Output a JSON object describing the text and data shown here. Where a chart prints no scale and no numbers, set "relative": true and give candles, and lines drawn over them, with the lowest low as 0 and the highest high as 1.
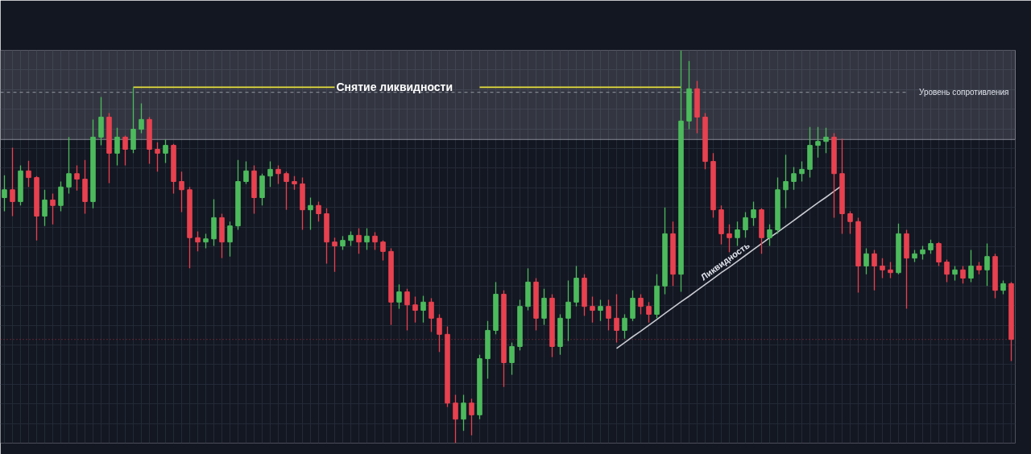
{
  "chart_data": {
    "type": "candlestick",
    "relative": true,
    "tick_labels": false,
    "grid": true,
    "categories": [
      null,
      null,
      null,
      null,
      null,
      null,
      null,
      null,
      null,
      null,
      null,
      null,
      null,
      null,
      null,
      null,
      null,
      null,
      null,
      null,
      null,
      null,
      null,
      null,
      null,
      null,
      null,
      null,
      null,
      null,
      null,
      null,
      null,
      null,
      null,
      null,
      null,
      null,
      null,
      null,
      null,
      null,
      null,
      null,
      null,
      null,
      null,
      null,
      null,
      null,
      null,
      null,
      null,
      null,
      null,
      null,
      null,
      null,
      null,
      null,
      null,
      null,
      null,
      null,
      null,
      null,
      null,
      null,
      null,
      null,
      null,
      null,
      null,
      null,
      null,
      null,
      null,
      null,
      null,
      null,
      null,
      null,
      null,
      null,
      null,
      null,
      null,
      null,
      null,
      null,
      null,
      null,
      null,
      null,
      null,
      null,
      null,
      null,
      null,
      null,
      null,
      null,
      null,
      null,
      null,
      null,
      null,
      null,
      null,
      null,
      null,
      null,
      null,
      null,
      null,
      null,
      null,
      null,
      null,
      null,
      null,
      null,
      null,
      null,
      null,
      null
    ],
    "ohlc": [
      [
        0.625,
        0.682,
        0.59,
        0.645
      ],
      [
        0.645,
        0.752,
        0.578,
        0.615
      ],
      [
        0.615,
        0.707,
        0.605,
        0.693
      ],
      [
        0.693,
        0.719,
        0.652,
        0.676
      ],
      [
        0.676,
        0.68,
        0.516,
        0.578
      ],
      [
        0.578,
        0.645,
        0.553,
        0.619
      ],
      [
        0.619,
        0.635,
        0.557,
        0.605
      ],
      [
        0.605,
        0.666,
        0.59,
        0.652
      ],
      [
        0.652,
        0.779,
        0.635,
        0.686
      ],
      [
        0.686,
        0.707,
        0.643,
        0.672
      ],
      [
        0.672,
        0.721,
        0.584,
        0.615
      ],
      [
        0.615,
        0.824,
        0.598,
        0.779
      ],
      [
        0.779,
        0.881,
        0.758,
        0.83
      ],
      [
        0.83,
        0.84,
        0.662,
        0.738
      ],
      [
        0.738,
        0.803,
        0.707,
        0.779
      ],
      [
        0.779,
        0.783,
        0.707,
        0.748
      ],
      [
        0.748,
        0.906,
        0.738,
        0.799
      ],
      [
        0.799,
        0.865,
        0.789,
        0.824
      ],
      [
        0.824,
        0.83,
        0.711,
        0.748
      ],
      [
        0.748,
        0.766,
        0.691,
        0.738
      ],
      [
        0.738,
        0.773,
        0.713,
        0.758
      ],
      [
        0.758,
        0.762,
        0.635,
        0.666
      ],
      [
        0.666,
        0.691,
        0.588,
        0.645
      ],
      [
        0.645,
        0.652,
        0.445,
        0.523
      ],
      [
        0.523,
        0.539,
        0.488,
        0.512
      ],
      [
        0.512,
        0.533,
        0.496,
        0.52
      ],
      [
        0.52,
        0.621,
        0.502,
        0.574
      ],
      [
        0.574,
        0.584,
        0.471,
        0.512
      ],
      [
        0.512,
        0.564,
        0.475,
        0.553
      ],
      [
        0.553,
        0.721,
        0.543,
        0.666
      ],
      [
        0.666,
        0.717,
        0.66,
        0.693
      ],
      [
        0.693,
        0.707,
        0.584,
        0.625
      ],
      [
        0.625,
        0.686,
        0.605,
        0.68
      ],
      [
        0.68,
        0.717,
        0.652,
        0.697
      ],
      [
        0.697,
        0.707,
        0.66,
        0.686
      ],
      [
        0.686,
        0.691,
        0.594,
        0.666
      ],
      [
        0.666,
        0.68,
        0.645,
        0.66
      ],
      [
        0.66,
        0.676,
        0.543,
        0.594
      ],
      [
        0.594,
        0.625,
        0.543,
        0.605
      ],
      [
        0.605,
        0.615,
        0.564,
        0.584
      ],
      [
        0.584,
        0.598,
        0.457,
        0.512
      ],
      [
        0.512,
        0.523,
        0.436,
        0.502
      ],
      [
        0.502,
        0.527,
        0.492,
        0.516
      ],
      [
        0.516,
        0.539,
        0.502,
        0.529
      ],
      [
        0.529,
        0.547,
        0.482,
        0.512
      ],
      [
        0.512,
        0.547,
        0.492,
        0.527
      ],
      [
        0.527,
        0.537,
        0.492,
        0.512
      ],
      [
        0.512,
        0.516,
        0.465,
        0.488
      ],
      [
        0.488,
        0.496,
        0.301,
        0.359
      ],
      [
        0.359,
        0.404,
        0.342,
        0.385
      ],
      [
        0.385,
        0.393,
        0.287,
        0.352
      ],
      [
        0.352,
        0.373,
        0.307,
        0.338
      ],
      [
        0.338,
        0.375,
        0.307,
        0.359
      ],
      [
        0.359,
        0.369,
        0.283,
        0.318
      ],
      [
        0.318,
        0.328,
        0.232,
        0.277
      ],
      [
        0.277,
        0.297,
        0.092,
        0.102
      ],
      [
        0.102,
        0.123,
        0,
        0.061
      ],
      [
        0.061,
        0.123,
        0.031,
        0.102
      ],
      [
        0.102,
        0.113,
        0.02,
        0.072
      ],
      [
        0.072,
        0.225,
        0.061,
        0.215
      ],
      [
        0.215,
        0.311,
        0.164,
        0.287
      ],
      [
        0.287,
        0.41,
        0.277,
        0.379
      ],
      [
        0.379,
        0.389,
        0.143,
        0.205
      ],
      [
        0.205,
        0.256,
        0.174,
        0.246
      ],
      [
        0.246,
        0.365,
        0.236,
        0.348
      ],
      [
        0.348,
        0.445,
        0.338,
        0.41
      ],
      [
        0.41,
        0.42,
        0.287,
        0.318
      ],
      [
        0.318,
        0.393,
        0.301,
        0.369
      ],
      [
        0.369,
        0.379,
        0.219,
        0.246
      ],
      [
        0.246,
        0.328,
        0.225,
        0.318
      ],
      [
        0.318,
        0.414,
        0.26,
        0.359
      ],
      [
        0.359,
        0.451,
        0.348,
        0.42
      ],
      [
        0.42,
        0.43,
        0.324,
        0.348
      ],
      [
        0.348,
        0.373,
        0.307,
        0.338
      ],
      [
        0.338,
        0.365,
        0.311,
        0.348
      ],
      [
        0.348,
        0.365,
        0.287,
        0.318
      ],
      [
        0.318,
        0.379,
        0.256,
        0.287
      ],
      [
        0.287,
        0.328,
        0.266,
        0.318
      ],
      [
        0.318,
        0.389,
        0.311,
        0.369
      ],
      [
        0.369,
        0.379,
        0.328,
        0.348
      ],
      [
        0.348,
        0.359,
        0.307,
        0.328
      ],
      [
        0.328,
        0.43,
        0.318,
        0.4
      ],
      [
        0.4,
        0.6,
        0.379,
        0.533
      ],
      [
        0.533,
        0.564,
        0.4,
        0.43
      ],
      [
        0.43,
        1.0,
        0.385,
        0.82
      ],
      [
        0.82,
        0.973,
        0.799,
        0.902
      ],
      [
        0.902,
        0.922,
        0.789,
        0.83
      ],
      [
        0.83,
        0.84,
        0.697,
        0.717
      ],
      [
        0.717,
        0.738,
        0.574,
        0.594
      ],
      [
        0.594,
        0.605,
        0.506,
        0.533
      ],
      [
        0.533,
        0.557,
        0.486,
        0.523
      ],
      [
        0.523,
        0.564,
        0.502,
        0.543
      ],
      [
        0.543,
        0.588,
        0.523,
        0.574
      ],
      [
        0.574,
        0.615,
        0.553,
        0.594
      ],
      [
        0.594,
        0.598,
        0.482,
        0.523
      ],
      [
        0.523,
        0.557,
        0.502,
        0.543
      ],
      [
        0.543,
        0.676,
        0.533,
        0.645
      ],
      [
        0.645,
        0.734,
        0.598,
        0.666
      ],
      [
        0.666,
        0.703,
        0.645,
        0.686
      ],
      [
        0.686,
        0.717,
        0.666,
        0.697
      ],
      [
        0.697,
        0.805,
        0.676,
        0.758
      ],
      [
        0.758,
        0.805,
        0.727,
        0.768
      ],
      [
        0.768,
        0.803,
        0.738,
        0.779
      ],
      [
        0.779,
        0.789,
        0.574,
        0.686
      ],
      [
        0.686,
        0.775,
        0.533,
        0.584
      ],
      [
        0.584,
        0.59,
        0.533,
        0.564
      ],
      [
        0.564,
        0.574,
        0.383,
        0.451
      ],
      [
        0.451,
        0.496,
        0.43,
        0.482
      ],
      [
        0.482,
        0.492,
        0.389,
        0.451
      ],
      [
        0.451,
        0.471,
        0.42,
        0.441
      ],
      [
        0.441,
        0.461,
        0.42,
        0.434
      ],
      [
        0.434,
        0.559,
        0.43,
        0.533
      ],
      [
        0.533,
        0.543,
        0.342,
        0.471
      ],
      [
        0.471,
        0.492,
        0.461,
        0.482
      ],
      [
        0.482,
        0.502,
        0.467,
        0.492
      ],
      [
        0.492,
        0.518,
        0.482,
        0.508
      ],
      [
        0.508,
        0.512,
        0.451,
        0.461
      ],
      [
        0.461,
        0.467,
        0.41,
        0.43
      ],
      [
        0.43,
        0.451,
        0.414,
        0.441
      ],
      [
        0.441,
        0.451,
        0.406,
        0.42
      ],
      [
        0.42,
        0.492,
        0.41,
        0.451
      ],
      [
        0.451,
        0.461,
        0.43,
        0.441
      ],
      [
        0.441,
        0.508,
        0.4,
        0.475
      ],
      [
        0.475,
        0.482,
        0.369,
        0.389
      ],
      [
        0.389,
        0.414,
        0.379,
        0.406
      ],
      [
        0.406,
        0.41,
        0.209,
        0.264
      ]
    ],
    "colors": [
      "#4cbb5c",
      "#e8414f",
      "#4cbb5c",
      "#e8414f",
      "#e8414f",
      "#4cbb5c",
      "#e8414f",
      "#4cbb5c",
      "#4cbb5c",
      "#e8414f",
      "#e8414f",
      "#4cbb5c",
      "#4cbb5c",
      "#e8414f",
      "#4cbb5c",
      "#e8414f",
      "#4cbb5c",
      "#4cbb5c",
      "#e8414f",
      "#e8414f",
      "#4cbb5c",
      "#e8414f",
      "#e8414f",
      "#e8414f",
      "#e8414f",
      "#4cbb5c",
      "#4cbb5c",
      "#e8414f",
      "#4cbb5c",
      "#4cbb5c",
      "#4cbb5c",
      "#e8414f",
      "#4cbb5c",
      "#4cbb5c",
      "#e8414f",
      "#e8414f",
      "#e8414f",
      "#e8414f",
      "#4cbb5c",
      "#e8414f",
      "#e8414f",
      "#e8414f",
      "#4cbb5c",
      "#4cbb5c",
      "#e8414f",
      "#4cbb5c",
      "#e8414f",
      "#e8414f",
      "#e8414f",
      "#4cbb5c",
      "#e8414f",
      "#e8414f",
      "#4cbb5c",
      "#e8414f",
      "#e8414f",
      "#e8414f",
      "#e8414f",
      "#4cbb5c",
      "#e8414f",
      "#4cbb5c",
      "#4cbb5c",
      "#4cbb5c",
      "#e8414f",
      "#4cbb5c",
      "#4cbb5c",
      "#4cbb5c",
      "#e8414f",
      "#4cbb5c",
      "#e8414f",
      "#4cbb5c",
      "#4cbb5c",
      "#4cbb5c",
      "#e8414f",
      "#e8414f",
      "#4cbb5c",
      "#e8414f",
      "#e8414f",
      "#4cbb5c",
      "#4cbb5c",
      "#e8414f",
      "#e8414f",
      "#4cbb5c",
      "#4cbb5c",
      "#e8414f",
      "#4cbb5c",
      "#4cbb5c",
      "#e8414f",
      "#e8414f",
      "#e8414f",
      "#e8414f",
      "#e8414f",
      "#4cbb5c",
      "#4cbb5c",
      "#4cbb5c",
      "#e8414f",
      "#4cbb5c",
      "#4cbb5c",
      "#4cbb5c",
      "#4cbb5c",
      "#4cbb5c",
      "#4cbb5c",
      "#4cbb5c",
      "#4cbb5c",
      "#e8414f",
      "#e8414f",
      "#e8414f",
      "#e8414f",
      "#4cbb5c",
      "#e8414f",
      "#e8414f",
      "#e8414f",
      "#4cbb5c",
      "#e8414f",
      "#4cbb5c",
      "#4cbb5c",
      "#4cbb5c",
      "#e8414f",
      "#e8414f",
      "#4cbb5c",
      "#e8414f",
      "#4cbb5c",
      "#e8414f",
      "#4cbb5c",
      "#e8414f",
      "#4cbb5c",
      "#e8414f"
    ],
    "series": [
      {
        "type": "line",
        "name": "Снятие ликвидности",
        "color": "#e6e03c",
        "values": [
          null,
          null,
          null,
          null,
          null,
          null,
          null,
          null,
          null,
          null,
          null,
          null,
          null,
          null,
          null,
          null,
          0.906,
          0.906,
          0.906,
          0.906,
          0.906,
          0.906,
          0.906,
          0.906,
          0.906,
          0.906,
          0.906,
          0.906,
          0.906,
          0.906,
          0.906,
          0.906,
          0.906,
          0.906,
          0.906,
          0.906,
          0.906,
          0.906,
          0.906,
          0.906,
          0.906,
          0.906,
          null,
          null,
          null,
          null,
          null,
          null,
          null,
          null,
          null,
          null,
          null,
          null,
          null,
          null,
          null,
          null,
          null,
          0.906,
          0.906,
          0.906,
          0.906,
          0.906,
          0.906,
          0.906,
          0.906,
          0.906,
          0.906,
          0.906,
          0.906,
          0.906,
          0.906,
          0.906,
          0.906,
          0.906,
          0.906,
          0.906,
          0.906,
          0.906,
          0.906,
          0.906,
          0.906,
          0.906,
          0.906,
          null,
          null,
          null,
          null,
          null,
          null,
          null,
          null,
          null,
          null,
          null,
          null,
          null,
          null,
          null,
          null,
          null,
          null,
          null,
          null,
          null,
          null,
          null,
          null,
          null,
          null,
          null,
          null,
          null,
          null,
          null,
          null,
          null,
          null,
          null,
          null,
          null,
          null,
          null,
          null,
          null
        ]
      },
      {
        "type": "line",
        "name": "Ликвидность",
        "color": "#c9cbd1",
        "values": [
          null,
          null,
          null,
          null,
          null,
          null,
          null,
          null,
          null,
          null,
          null,
          null,
          null,
          null,
          null,
          null,
          null,
          null,
          null,
          null,
          null,
          null,
          null,
          null,
          null,
          null,
          null,
          null,
          null,
          null,
          null,
          null,
          null,
          null,
          null,
          null,
          null,
          null,
          null,
          null,
          null,
          null,
          null,
          null,
          null,
          null,
          null,
          null,
          null,
          null,
          null,
          null,
          null,
          null,
          null,
          null,
          null,
          null,
          null,
          null,
          null,
          null,
          null,
          null,
          null,
          null,
          null,
          null,
          null,
          null,
          null,
          null,
          null,
          null,
          null,
          null,
          0.241,
          0.256,
          0.271,
          0.285,
          0.3,
          0.315,
          0.33,
          0.345,
          0.36,
          0.374,
          0.389,
          0.404,
          0.419,
          0.434,
          0.448,
          0.463,
          0.478,
          0.493,
          0.508,
          0.523,
          0.537,
          0.552,
          0.567,
          0.582,
          0.597,
          0.612,
          0.626,
          0.641,
          0.656,
          null,
          null,
          null,
          null,
          null,
          null,
          null,
          null,
          null,
          null,
          null,
          null,
          null,
          null,
          null,
          null,
          null,
          null,
          null,
          null,
          null
        ]
      }
    ],
    "ref_lines": [
      {
        "axis": "y",
        "value": 0.893,
        "label": "Уровень сопротивления",
        "color": "#9598a1",
        "line_style": "dashed"
      },
      {
        "axis": "y",
        "value": 0.264,
        "color": "#9b3340",
        "line_style": "dotted"
      }
    ],
    "bands": [
      {
        "axis": "y",
        "from": 0.773,
        "to": 1.014,
        "color": "#b2b5be"
      }
    ]
  }
}
